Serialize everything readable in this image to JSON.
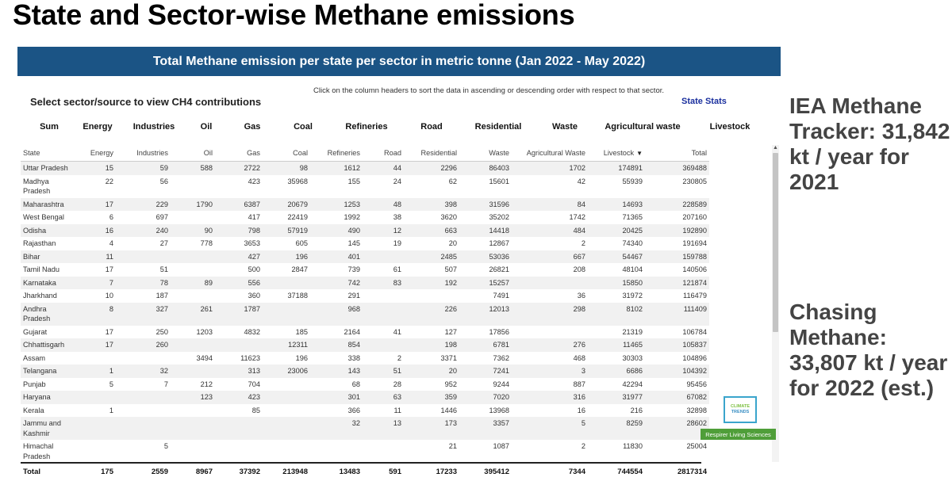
{
  "slide_title": "State and Sector-wise Methane emissions",
  "banner_title": "Total Methane emission per state per sector in metric tonne (Jan 2022 - May 2022)",
  "select_label": "Select sector/source to view CH4 contributions",
  "sort_hint": "Click on the column headers to sort the data in ascending or descending order with respect to that sector.",
  "state_stats_link": "State Stats",
  "sector_buttons": [
    "Sum",
    "Energy",
    "Industries",
    "Oil",
    "Gas",
    "Coal",
    "Refineries",
    "Road",
    "Residential",
    "Waste",
    "Agricultural waste",
    "Livestock"
  ],
  "columns": [
    "State",
    "Energy",
    "Industries",
    "Oil",
    "Gas",
    "Coal",
    "Refineries",
    "Road",
    "Residential",
    "Waste",
    "Agricultural Waste",
    "Livestock",
    "Total"
  ],
  "sort_indicator": "▼",
  "rows": [
    [
      "Uttar Pradesh",
      "15",
      "59",
      "588",
      "2722",
      "98",
      "1612",
      "44",
      "2296",
      "86403",
      "1702",
      "174891",
      "369488"
    ],
    [
      "Madhya Pradesh",
      "22",
      "56",
      "",
      "423",
      "35968",
      "155",
      "24",
      "62",
      "15601",
      "42",
      "55939",
      "230805"
    ],
    [
      "Maharashtra",
      "17",
      "229",
      "1790",
      "6387",
      "20679",
      "1253",
      "48",
      "398",
      "31596",
      "84",
      "14693",
      "228589"
    ],
    [
      "West Bengal",
      "6",
      "697",
      "",
      "417",
      "22419",
      "1992",
      "38",
      "3620",
      "35202",
      "1742",
      "71365",
      "207160"
    ],
    [
      "Odisha",
      "16",
      "240",
      "90",
      "798",
      "57919",
      "490",
      "12",
      "663",
      "14418",
      "484",
      "20425",
      "192890"
    ],
    [
      "Rajasthan",
      "4",
      "27",
      "778",
      "3653",
      "605",
      "145",
      "19",
      "20",
      "12867",
      "2",
      "74340",
      "191694"
    ],
    [
      "Bihar",
      "11",
      "",
      "",
      "427",
      "196",
      "401",
      "",
      "2485",
      "53036",
      "667",
      "54467",
      "159788"
    ],
    [
      "Tamil Nadu",
      "17",
      "51",
      "",
      "500",
      "2847",
      "739",
      "61",
      "507",
      "26821",
      "208",
      "48104",
      "140506"
    ],
    [
      "Karnataka",
      "7",
      "78",
      "89",
      "556",
      "",
      "742",
      "83",
      "192",
      "15257",
      "",
      "15850",
      "121874"
    ],
    [
      "Jharkhand",
      "10",
      "187",
      "",
      "360",
      "37188",
      "291",
      "",
      "",
      "7491",
      "36",
      "31972",
      "116479"
    ],
    [
      "Andhra Pradesh",
      "8",
      "327",
      "261",
      "1787",
      "",
      "968",
      "",
      "226",
      "12013",
      "298",
      "8102",
      "111409"
    ],
    [
      "Gujarat",
      "17",
      "250",
      "1203",
      "4832",
      "185",
      "2164",
      "41",
      "127",
      "17856",
      "",
      "21319",
      "106784"
    ],
    [
      "Chhattisgarh",
      "17",
      "260",
      "",
      "",
      "12311",
      "854",
      "",
      "198",
      "6781",
      "276",
      "11465",
      "105837"
    ],
    [
      "Assam",
      "",
      "",
      "3494",
      "11623",
      "196",
      "338",
      "2",
      "3371",
      "7362",
      "468",
      "30303",
      "104896"
    ],
    [
      "Telangana",
      "1",
      "32",
      "",
      "313",
      "23006",
      "143",
      "51",
      "20",
      "7241",
      "3",
      "6686",
      "104392"
    ],
    [
      "Punjab",
      "5",
      "7",
      "212",
      "704",
      "",
      "68",
      "28",
      "952",
      "9244",
      "887",
      "42294",
      "95456"
    ],
    [
      "Haryana",
      "",
      "",
      "123",
      "423",
      "",
      "301",
      "63",
      "359",
      "7020",
      "316",
      "31977",
      "67082"
    ],
    [
      "Kerala",
      "1",
      "",
      "",
      "85",
      "",
      "366",
      "11",
      "1446",
      "13968",
      "16",
      "216",
      "32898"
    ],
    [
      "Jammu and Kashmir",
      "",
      "",
      "",
      "",
      "",
      "32",
      "13",
      "173",
      "3357",
      "5",
      "8259",
      "28602"
    ],
    [
      "Himachal Pradesh",
      "",
      "5",
      "",
      "",
      "",
      "",
      "",
      "21",
      "1087",
      "2",
      "11830",
      "25004"
    ]
  ],
  "totals": [
    "Total",
    "175",
    "2559",
    "8967",
    "37392",
    "213948",
    "13483",
    "591",
    "17233",
    "395412",
    "7344",
    "744554",
    "2817314"
  ],
  "logo": {
    "line1": "CLIMATE",
    "line2": "TRENDS"
  },
  "respirer_label": "Respirer Living Sciences",
  "side_notes": [
    "IEA Methane Tracker: 31,842 kt / year for 2021",
    "Chasing Methane: 33,807 kt / year for 2022 (est.)"
  ],
  "colors": {
    "banner": "#1b5485",
    "link": "#1a2f9e",
    "respirer": "#4f9e39"
  }
}
